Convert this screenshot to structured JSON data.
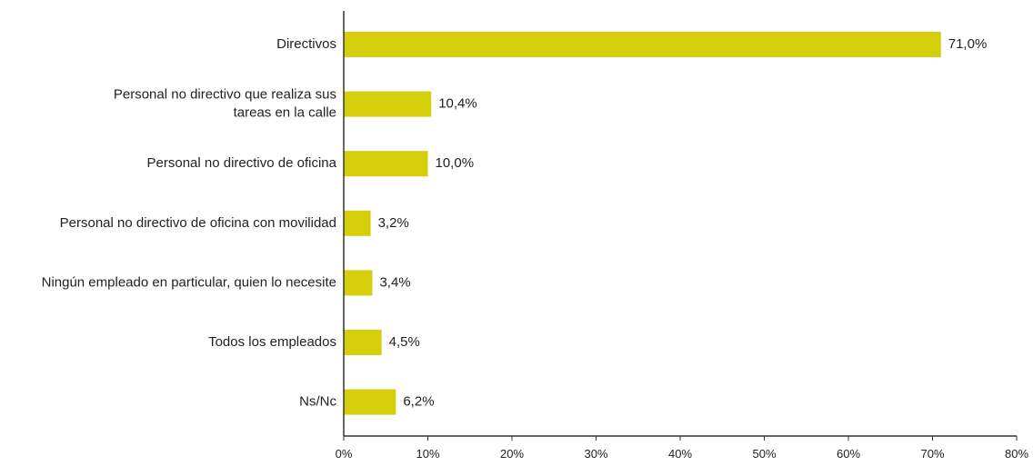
{
  "chart_data": {
    "type": "bar",
    "orientation": "horizontal",
    "categories": [
      "Directivos",
      "Personal no directivo que realiza sus tareas en la calle",
      "Personal no directivo de oficina",
      "Personal no directivo de oficina con movilidad",
      "Ningún empleado en particular, quien lo necesite",
      "Todos los empleados",
      "Ns/Nc"
    ],
    "category_lines": [
      [
        "Directivos"
      ],
      [
        "Personal no directivo que realiza sus",
        "tareas en la calle"
      ],
      [
        "Personal no directivo de oficina"
      ],
      [
        "Personal no directivo de oficina con movilidad"
      ],
      [
        "Ningún empleado en particular, quien lo necesite"
      ],
      [
        "Todos los empleados"
      ],
      [
        "Ns/Nc"
      ]
    ],
    "values": [
      71.0,
      10.4,
      10.0,
      3.2,
      3.4,
      4.5,
      6.2
    ],
    "value_labels": [
      "71,0%",
      "10,4%",
      "10,0%",
      "3,2%",
      "3,4%",
      "4,5%",
      "6,2%"
    ],
    "xlim": [
      0,
      80
    ],
    "x_ticks": [
      0,
      10,
      20,
      30,
      40,
      50,
      60,
      70,
      80
    ],
    "x_tick_labels": [
      "0%",
      "10%",
      "20%",
      "30%",
      "40%",
      "50%",
      "60%",
      "70%",
      "80%"
    ],
    "title": "",
    "xlabel": "",
    "ylabel": "",
    "grid": false,
    "legend": "none",
    "colors": {
      "bar": "#d4cf0a",
      "axis": "#333333",
      "text": "#222222"
    }
  }
}
